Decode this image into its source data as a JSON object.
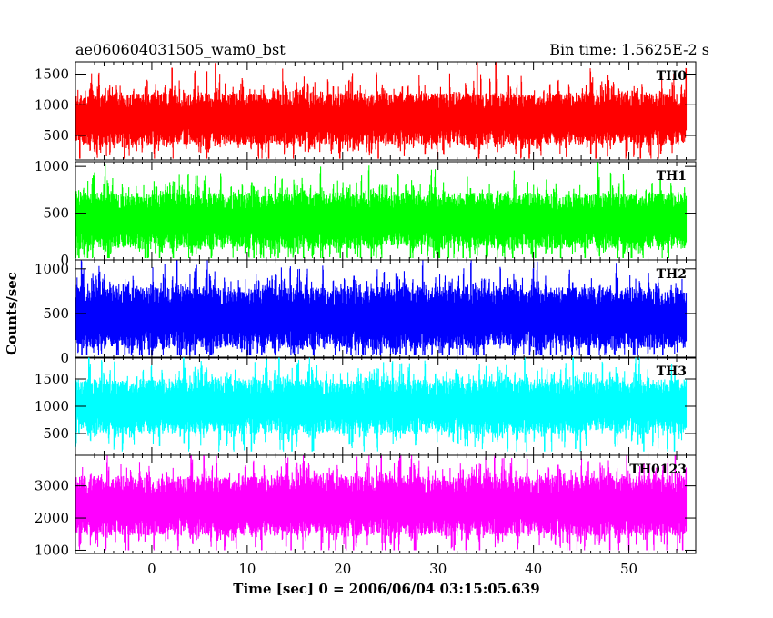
{
  "chart_data": {
    "type": "line",
    "title_left": "ae060604031505_wam0_bst",
    "title_right": "Bin time: 1.5625E-2 s",
    "xlabel": "Time [sec] 0 = 2006/06/04 03:15:05.639",
    "ylabel": "Counts/sec",
    "xlim": [
      -8,
      57
    ],
    "x_ticks": [
      0,
      10,
      20,
      30,
      40,
      50
    ],
    "x_range_data": [
      -8,
      56
    ],
    "panels": [
      {
        "name": "TH0",
        "color": "#ff0000",
        "ylim": [
          100,
          1700
        ],
        "y_ticks": [
          500,
          1000,
          1500
        ],
        "base": 770,
        "spread": 280,
        "floor": 120,
        "ceil": 1700
      },
      {
        "name": "TH1",
        "color": "#00ff00",
        "ylim": [
          0,
          1050
        ],
        "y_ticks": [
          0,
          500,
          1000
        ],
        "base": 420,
        "spread": 200,
        "floor": 20,
        "ceil": 1050
      },
      {
        "name": "TH2",
        "color": "#0000ff",
        "ylim": [
          0,
          1100
        ],
        "y_ticks": [
          0,
          500,
          1000
        ],
        "base": 450,
        "spread": 230,
        "floor": 30,
        "ceil": 1100
      },
      {
        "name": "TH3",
        "color": "#00ffff",
        "ylim": [
          100,
          1900
        ],
        "y_ticks": [
          500,
          1000,
          1500
        ],
        "base": 1000,
        "spread": 330,
        "floor": 170,
        "ceil": 1900
      },
      {
        "name": "TH0123",
        "color": "#ff00ff",
        "ylim": [
          900,
          3950
        ],
        "y_ticks": [
          1000,
          2000,
          3000
        ],
        "base": 2380,
        "spread": 620,
        "floor": 1000,
        "ceil": 3950
      }
    ]
  }
}
